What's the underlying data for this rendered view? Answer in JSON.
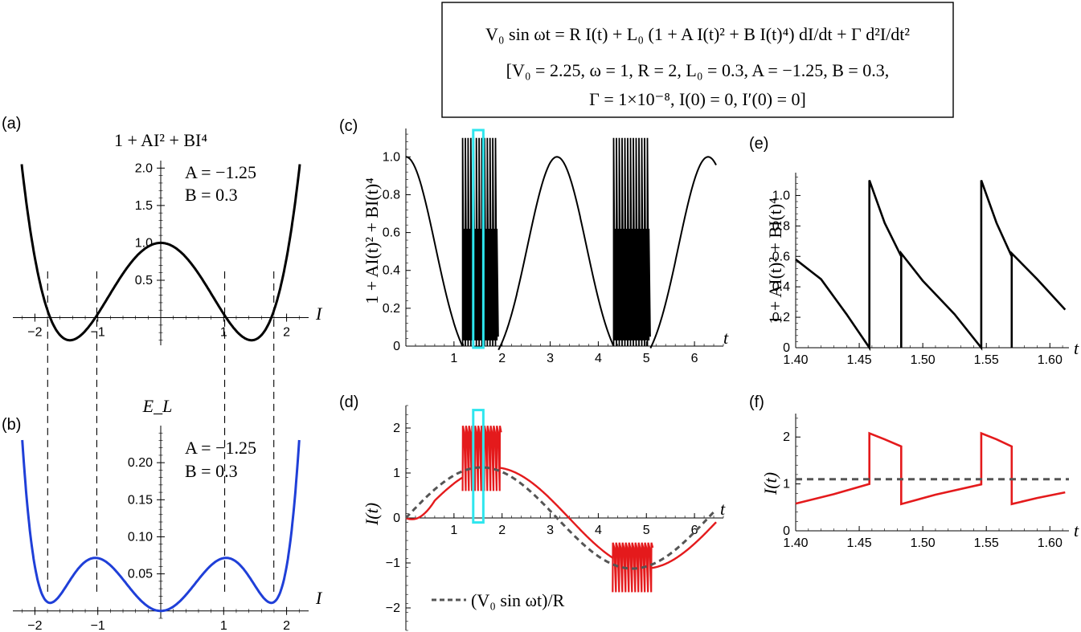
{
  "equation": {
    "lhs": "V₀ sin ωt = R I(t) + L₀ (1 + A I(t)² + B I(t)⁴) dI/dt + Γ d²I/dt²",
    "params_line1": "[V₀ = 2.25, ω = 1, R = 2, L₀ = 0.3, A = −1.25, B = 0.3,",
    "params_line2": "Γ = 1×10⁻⁸, I(0) = 0, I′(0) = 0]"
  },
  "colors": {
    "black": "#000000",
    "blue": "#1f3fd8",
    "red": "#e41a1c",
    "cyan": "#2ee6ee",
    "gray": "#555555"
  },
  "panel_letters": {
    "a": "(a)",
    "b": "(b)",
    "c": "(c)",
    "d": "(d)",
    "e": "(e)",
    "f": "(f)"
  },
  "chart_data": [
    {
      "id": "a",
      "type": "line",
      "title": "1 + AI² + BI⁴",
      "xlabel": "I",
      "ylabel": "",
      "xlim": [
        -2.35,
        2.35
      ],
      "ylim": [
        -0.37,
        2.1
      ],
      "xticks": [
        -2,
        -1,
        1,
        2
      ],
      "xtick_labels": [
        "−2",
        "−1",
        "1",
        "2"
      ],
      "yticks": [
        0.5,
        1.0,
        1.5,
        2.0
      ],
      "ytick_labels": [
        "0.5",
        "1.0",
        "1.5",
        "2.0"
      ],
      "annotation": [
        "A = −1.25",
        "B = 0.3"
      ],
      "function": "1 + A*I^2 + B*I^4",
      "params": {
        "A": -1.25,
        "B": 0.3
      },
      "dashed_verticals": [
        -1.797,
        -1.016,
        1.016,
        1.797
      ],
      "series": [
        {
          "name": "1+AI²+BI⁴",
          "color": "#000000"
        }
      ]
    },
    {
      "id": "b",
      "type": "line",
      "title": "E_L",
      "xlabel": "I",
      "ylabel": "",
      "xlim": [
        -2.35,
        2.35
      ],
      "ylim": [
        -0.01,
        0.25
      ],
      "xticks": [
        -2,
        -1,
        1,
        2
      ],
      "xtick_labels": [
        "−2",
        "−1",
        "1",
        "2"
      ],
      "yticks": [
        0.05,
        0.1,
        0.15,
        0.2
      ],
      "ytick_labels": [
        "0.05",
        "0.10",
        "0.15",
        "0.20"
      ],
      "annotation": [
        "A = −1.25",
        "B = 0.3"
      ],
      "function": "L0*(I^2/2 + A*I^4/4 + B*I^6/6)",
      "params": {
        "A": -1.25,
        "B": 0.3,
        "L0": 0.3
      },
      "series": [
        {
          "name": "E_L",
          "color": "#1f3fd8"
        }
      ]
    },
    {
      "id": "c",
      "type": "line",
      "xlabel": "t",
      "ylabel": "1 + AI(t)² + BI(t)⁴",
      "xlim": [
        0,
        6.6
      ],
      "ylim": [
        0,
        1.15
      ],
      "xticks": [
        1,
        2,
        3,
        4,
        5,
        6
      ],
      "xtick_labels": [
        "1",
        "2",
        "3",
        "4",
        "5",
        "6"
      ],
      "yticks": [
        0,
        0.2,
        0.4,
        0.6,
        0.8,
        1.0
      ],
      "ytick_labels": [
        "0",
        "0.2",
        "0.4",
        "0.6",
        "0.8",
        "1.0"
      ],
      "smooth_formula": "g(V0*sin(t)/R)",
      "bursts": [
        {
          "t_start": 1.18,
          "t_end": 1.92,
          "top_tall": 1.1,
          "top_short": 0.62
        },
        {
          "t_start": 4.32,
          "t_end": 5.08,
          "top_tall": 1.1,
          "top_short": 0.62
        }
      ],
      "highlight_box": {
        "t_start": 1.4,
        "t_end": 1.61,
        "color": "#2ee6ee"
      },
      "series": [
        {
          "name": "1+AI(t)²+BI(t)⁴",
          "color": "#000000"
        }
      ]
    },
    {
      "id": "d",
      "type": "line",
      "xlabel": "t",
      "ylabel": "I(t)",
      "xlim": [
        0,
        6.6
      ],
      "ylim": [
        -2.5,
        2.5
      ],
      "xticks": [
        1,
        2,
        3,
        4,
        5,
        6
      ],
      "xtick_labels": [
        "1",
        "2",
        "3",
        "4",
        "5",
        "6"
      ],
      "yticks": [
        -2,
        -1,
        0,
        1,
        2
      ],
      "ytick_labels": [
        "−2",
        "−1",
        "0",
        "1",
        "2"
      ],
      "legend": "(V₀ sin ωt)/R",
      "highlight_box": {
        "t_start": 1.4,
        "t_end": 1.61,
        "color": "#2ee6ee"
      },
      "series": [
        {
          "name": "I(t)",
          "color": "#e41a1c"
        },
        {
          "name": "(V₀ sin ωt)/R",
          "color": "#555555",
          "dashed": true
        }
      ]
    },
    {
      "id": "e",
      "type": "line",
      "xlabel": "t",
      "ylabel": "1 + AI(t)² + BI(t)⁴",
      "xlim": [
        1.4,
        1.615
      ],
      "ylim": [
        0,
        1.15
      ],
      "xticks": [
        1.4,
        1.45,
        1.5,
        1.55,
        1.6
      ],
      "xtick_labels": [
        "1.40",
        "1.45",
        "1.50",
        "1.55",
        "1.60"
      ],
      "yticks": [
        0,
        0.2,
        0.4,
        0.6,
        0.8,
        1.0
      ],
      "ytick_labels": [
        "0",
        "0.2",
        "0.4",
        "0.6",
        "0.8",
        "1.0"
      ],
      "jumps_t": [
        1.458,
        1.483,
        1.546,
        1.57
      ],
      "series": [
        {
          "name": "1+AI(t)²+BI(t)⁴",
          "color": "#000000"
        }
      ]
    },
    {
      "id": "f",
      "type": "line",
      "xlabel": "t",
      "ylabel": "I(t)",
      "xlim": [
        1.4,
        1.615
      ],
      "ylim": [
        0,
        2.5
      ],
      "xticks": [
        1.4,
        1.45,
        1.5,
        1.55,
        1.6
      ],
      "xtick_labels": [
        "1.40",
        "1.45",
        "1.50",
        "1.55",
        "1.60"
      ],
      "yticks": [
        0,
        1,
        2
      ],
      "ytick_labels": [
        "0",
        "1",
        "2"
      ],
      "jumps_t": [
        1.458,
        1.483,
        1.546,
        1.57
      ],
      "dashed_level": 1.1,
      "series": [
        {
          "name": "I(t)",
          "color": "#e41a1c"
        },
        {
          "name": "(V₀ sin ωt)/R",
          "color": "#555555",
          "dashed": true
        }
      ]
    }
  ]
}
